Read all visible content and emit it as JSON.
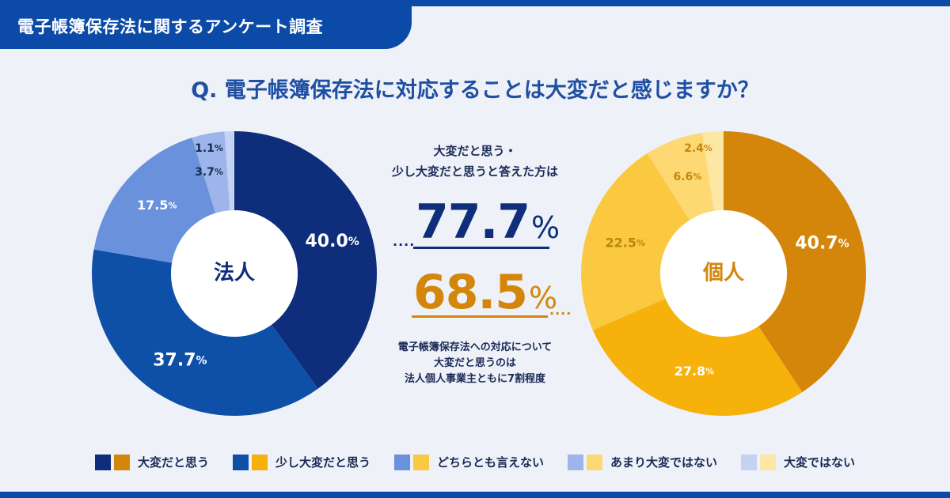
{
  "header": {
    "tag": "電子帳簿保存法に関するアンケート調査"
  },
  "question": "Q. 電子帳簿保存法に対応することは大変だと感じますか？",
  "chart_data": [
    {
      "type": "pie",
      "name": "法人",
      "center_label": "法人",
      "unit": "%",
      "categories": [
        "大変だと思う",
        "少し大変だと思う",
        "どちらとも言えない",
        "あまり大変ではない",
        "大変ではない"
      ],
      "values": [
        40.0,
        37.7,
        17.5,
        3.7,
        1.1
      ],
      "labels": [
        "40.0",
        "37.7",
        "17.5",
        "3.7",
        "1.1"
      ],
      "colors": [
        "#0e2d7a",
        "#0e4fa8",
        "#6a92dc",
        "#9db5ea",
        "#c4d2f4"
      ],
      "label_colors": [
        "#ffffff",
        "#ffffff",
        "#ffffff",
        "#1a2a55",
        "#1a2a55"
      ]
    },
    {
      "type": "pie",
      "name": "個人",
      "center_label": "個人",
      "unit": "%",
      "categories": [
        "大変だと思う",
        "少し大変だと思う",
        "どちらとも言えない",
        "あまり大変ではない",
        "大変ではない"
      ],
      "values": [
        40.7,
        27.8,
        22.5,
        6.6,
        2.4
      ],
      "labels": [
        "40.7",
        "27.8",
        "22.5",
        "6.6",
        "2.4"
      ],
      "colors": [
        "#d4860a",
        "#f6b10b",
        "#fbc93f",
        "#fdd873",
        "#fde7a5"
      ],
      "label_colors": [
        "#ffffff",
        "#ffffff",
        "#b8860b",
        "#c8860b",
        "#c8860b"
      ]
    }
  ],
  "summary": {
    "intro_line1": "大変だと思う・",
    "intro_line2": "少し大変だと思うと答えた方は",
    "corp_value": "77.7",
    "ind_value": "68.5",
    "pct_sign": "%",
    "dots": "....",
    "note_line1": "電子帳簿保存法への対応について",
    "note_line2": "大変だと思うのは",
    "note_line3": "法人個人事業主ともに7割程度"
  },
  "colors": {
    "corp_accent": "#0e2d7a",
    "ind_accent": "#d4860a",
    "brand": "#0b4aa6"
  },
  "legend": [
    {
      "label": "大変だと思う",
      "corp_color": "#0e2d7a",
      "ind_color": "#d4860a"
    },
    {
      "label": "少し大変だと思う",
      "corp_color": "#0e4fa8",
      "ind_color": "#f6b10b"
    },
    {
      "label": "どちらとも言えない",
      "corp_color": "#6a92dc",
      "ind_color": "#fbc93f"
    },
    {
      "label": "あまり大変ではない",
      "corp_color": "#9db5ea",
      "ind_color": "#fdd873"
    },
    {
      "label": "大変ではない",
      "corp_color": "#c4d2f4",
      "ind_color": "#fde7a5"
    }
  ]
}
